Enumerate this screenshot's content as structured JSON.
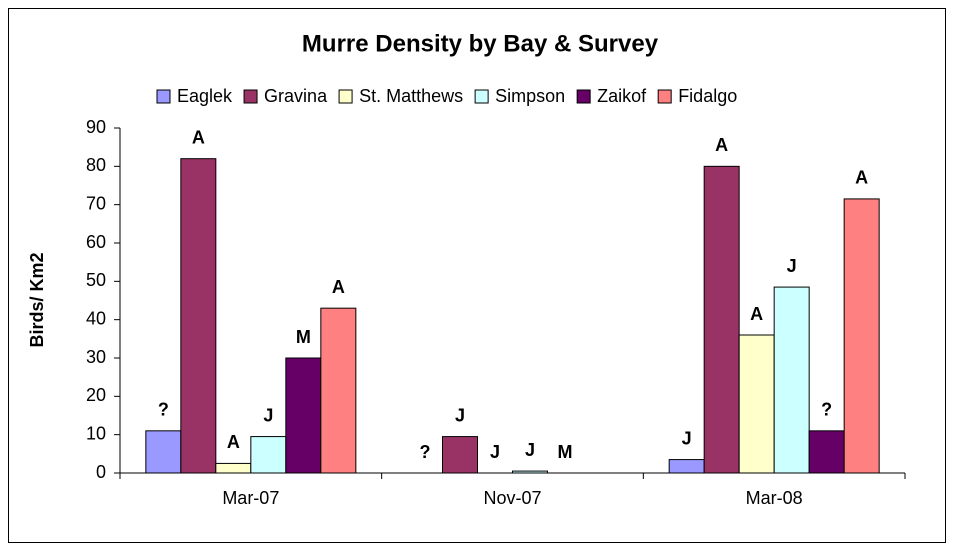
{
  "chart_data": {
    "type": "bar",
    "title": "Murre Density by Bay & Survey",
    "y_label": "Birds/ Km2",
    "categories": [
      "Mar-07",
      "Nov-07",
      "Mar-08"
    ],
    "series": [
      {
        "name": "Eaglek",
        "color": "#9999ff",
        "values": [
          11,
          0,
          3.5
        ],
        "labels": [
          "?",
          "?",
          "J"
        ]
      },
      {
        "name": "Gravina",
        "color": "#993366",
        "values": [
          82,
          9.5,
          80
        ],
        "labels": [
          "A",
          "J",
          "A"
        ]
      },
      {
        "name": "St. Matthews",
        "color": "#ffffcc",
        "values": [
          2.5,
          0,
          36
        ],
        "labels": [
          "A",
          "J",
          "A"
        ]
      },
      {
        "name": "Simpson",
        "color": "#ccffff",
        "values": [
          9.5,
          0.5,
          48.5
        ],
        "labels": [
          "J",
          "J",
          "J"
        ]
      },
      {
        "name": "Zaikof",
        "color": "#660066",
        "values": [
          30,
          0,
          11
        ],
        "labels": [
          "M",
          "M",
          "?"
        ]
      },
      {
        "name": "Fidalgo",
        "color": "#ff8080",
        "values": [
          43,
          null,
          71.5
        ],
        "labels": [
          "A",
          null,
          "A"
        ]
      }
    ],
    "ylim": [
      0,
      90
    ],
    "yticks": [
      0,
      10,
      20,
      30,
      40,
      50,
      60,
      70,
      80,
      90
    ],
    "legend": "top"
  }
}
